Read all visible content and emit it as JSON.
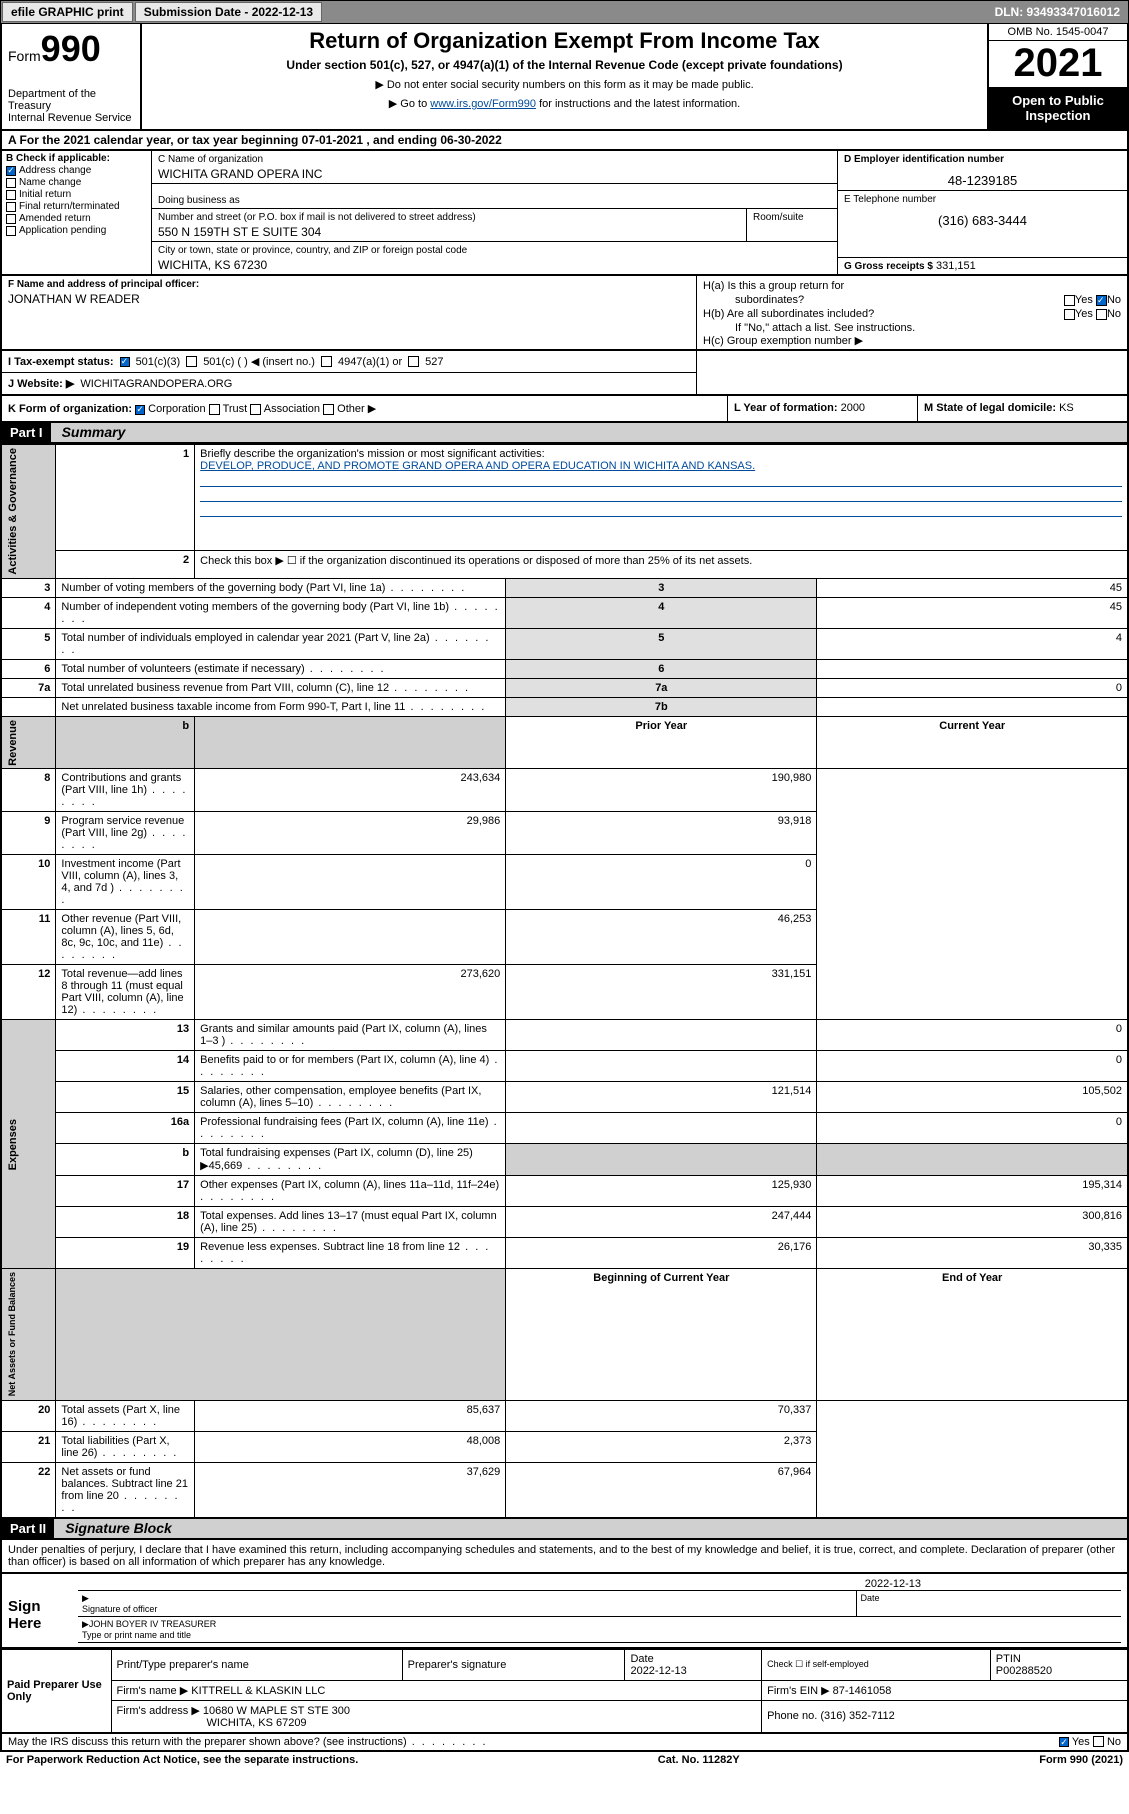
{
  "toolbar": {
    "efile": "efile GRAPHIC print",
    "subdate_label": "Submission Date - 2022-12-13",
    "dln": "DLN: 93493347016012"
  },
  "header": {
    "form_label": "Form",
    "form_num": "990",
    "title": "Return of Organization Exempt From Income Tax",
    "subtitle": "Under section 501(c), 527, or 4947(a)(1) of the Internal Revenue Code (except private foundations)",
    "note1": "▶ Do not enter social security numbers on this form as it may be made public.",
    "note2_pre": "▶ Go to ",
    "note2_link": "www.irs.gov/Form990",
    "note2_post": " for instructions and the latest information.",
    "dept": "Department of the Treasury\nInternal Revenue Service",
    "omb": "OMB No. 1545-0047",
    "year": "2021",
    "open": "Open to Public Inspection"
  },
  "rowA": "A For the 2021 calendar year, or tax year beginning 07-01-2021   , and ending 06-30-2022",
  "sectionB": {
    "label": "B Check if applicable:",
    "items": [
      "Address change",
      "Name change",
      "Initial return",
      "Final return/terminated",
      "Amended return",
      "Application pending"
    ],
    "checked_idx": 0
  },
  "sectionC": {
    "name_label": "C Name of organization",
    "name": "WICHITA GRAND OPERA INC",
    "dba_label": "Doing business as",
    "street_label": "Number and street (or P.O. box if mail is not delivered to street address)",
    "street": "550 N 159TH ST E SUITE 304",
    "room_label": "Room/suite",
    "city_label": "City or town, state or province, country, and ZIP or foreign postal code",
    "city": "WICHITA, KS  67230"
  },
  "sectionD": {
    "ein_label": "D Employer identification number",
    "ein": "48-1239185",
    "tel_label": "E Telephone number",
    "tel": "(316) 683-3444",
    "gross_label": "G Gross receipts $",
    "gross": "331,151"
  },
  "sectionF": {
    "label": "F Name and address of principal officer:",
    "name": "JONATHAN W READER"
  },
  "sectionH": {
    "ha": "H(a)  Is this a group return for",
    "ha2": "subordinates?",
    "hb": "H(b)  Are all subordinates included?",
    "hb_note": "If \"No,\" attach a list. See instructions.",
    "hc": "H(c)  Group exemption number ▶",
    "yes": "Yes",
    "no": "No"
  },
  "sectionI": {
    "label": "I    Tax-exempt status:",
    "opts": [
      "501(c)(3)",
      "501(c) (  ) ◀ (insert no.)",
      "4947(a)(1) or",
      "527"
    ]
  },
  "sectionJ": {
    "label": "J    Website: ▶",
    "val": "WICHITAGRANDOPERA.ORG"
  },
  "sectionK": {
    "label": "K Form of organization:",
    "opts": [
      "Corporation",
      "Trust",
      "Association",
      "Other ▶"
    ]
  },
  "sectionL": {
    "label": "L Year of formation:",
    "val": "2000"
  },
  "sectionM": {
    "label": "M State of legal domicile:",
    "val": "KS"
  },
  "part1": {
    "label": "Part I",
    "title": "Summary"
  },
  "summary": {
    "line1_label": "Briefly describe the organization's mission or most significant activities:",
    "line1_val": "DEVELOP, PRODUCE, AND PROMOTE GRAND OPERA AND OPERA EDUCATION IN WICHITA AND KANSAS.",
    "line2": "Check this box ▶ ☐  if the organization discontinued its operations or disposed of more than 25% of its net assets.",
    "hdr_prior": "Prior Year",
    "hdr_current": "Current Year",
    "hdr_begin": "Beginning of Current Year",
    "hdr_end": "End of Year",
    "side1": "Activities & Governance",
    "side2": "Revenue",
    "side3": "Expenses",
    "side4": "Net Assets or Fund Balances",
    "rows": [
      {
        "n": "3",
        "t": "Number of voting members of the governing body (Part VI, line 1a)",
        "ln": "3",
        "v": "45"
      },
      {
        "n": "4",
        "t": "Number of independent voting members of the governing body (Part VI, line 1b)",
        "ln": "4",
        "v": "45"
      },
      {
        "n": "5",
        "t": "Total number of individuals employed in calendar year 2021 (Part V, line 2a)",
        "ln": "5",
        "v": "4"
      },
      {
        "n": "6",
        "t": "Total number of volunteers (estimate if necessary)",
        "ln": "6",
        "v": ""
      },
      {
        "n": "7a",
        "t": "Total unrelated business revenue from Part VIII, column (C), line 12",
        "ln": "7a",
        "v": "0"
      },
      {
        "n": "",
        "t": "Net unrelated business taxable income from Form 990-T, Part I, line 11",
        "ln": "7b",
        "v": ""
      }
    ],
    "rev": [
      {
        "n": "8",
        "t": "Contributions and grants (Part VIII, line 1h)",
        "p": "243,634",
        "c": "190,980"
      },
      {
        "n": "9",
        "t": "Program service revenue (Part VIII, line 2g)",
        "p": "29,986",
        "c": "93,918"
      },
      {
        "n": "10",
        "t": "Investment income (Part VIII, column (A), lines 3, 4, and 7d )",
        "p": "",
        "c": "0"
      },
      {
        "n": "11",
        "t": "Other revenue (Part VIII, column (A), lines 5, 6d, 8c, 9c, 10c, and 11e)",
        "p": "",
        "c": "46,253"
      },
      {
        "n": "12",
        "t": "Total revenue—add lines 8 through 11 (must equal Part VIII, column (A), line 12)",
        "p": "273,620",
        "c": "331,151"
      }
    ],
    "exp": [
      {
        "n": "13",
        "t": "Grants and similar amounts paid (Part IX, column (A), lines 1–3 )",
        "p": "",
        "c": "0"
      },
      {
        "n": "14",
        "t": "Benefits paid to or for members (Part IX, column (A), line 4)",
        "p": "",
        "c": "0"
      },
      {
        "n": "15",
        "t": "Salaries, other compensation, employee benefits (Part IX, column (A), lines 5–10)",
        "p": "121,514",
        "c": "105,502"
      },
      {
        "n": "16a",
        "t": "Professional fundraising fees (Part IX, column (A), line 11e)",
        "p": "",
        "c": "0"
      },
      {
        "n": "b",
        "t": "Total fundraising expenses (Part IX, column (D), line 25) ▶45,669",
        "p": "shaded",
        "c": "shaded"
      },
      {
        "n": "17",
        "t": "Other expenses (Part IX, column (A), lines 11a–11d, 11f–24e)",
        "p": "125,930",
        "c": "195,314"
      },
      {
        "n": "18",
        "t": "Total expenses. Add lines 13–17 (must equal Part IX, column (A), line 25)",
        "p": "247,444",
        "c": "300,816"
      },
      {
        "n": "19",
        "t": "Revenue less expenses. Subtract line 18 from line 12",
        "p": "26,176",
        "c": "30,335"
      }
    ],
    "net": [
      {
        "n": "20",
        "t": "Total assets (Part X, line 16)",
        "p": "85,637",
        "c": "70,337"
      },
      {
        "n": "21",
        "t": "Total liabilities (Part X, line 26)",
        "p": "48,008",
        "c": "2,373"
      },
      {
        "n": "22",
        "t": "Net assets or fund balances. Subtract line 21 from line 20",
        "p": "37,629",
        "c": "67,964"
      }
    ]
  },
  "part2": {
    "label": "Part II",
    "title": "Signature Block"
  },
  "sig": {
    "perjury": "Under penalties of perjury, I declare that I have examined this return, including accompanying schedules and statements, and to the best of my knowledge and belief, it is true, correct, and complete. Declaration of preparer (other than officer) is based on all information of which preparer has any knowledge.",
    "sign_here": "Sign Here",
    "sig_officer": "Signature of officer",
    "date_label": "Date",
    "date": "2022-12-13",
    "name_title": "JOHN BOYER IV TREASURER",
    "name_label": "Type or print name and title"
  },
  "paid": {
    "label": "Paid Preparer Use Only",
    "h1": "Print/Type preparer's name",
    "h2": "Preparer's signature",
    "h3": "Date",
    "h3v": "2022-12-13",
    "h4": "Check ☐ if self-employed",
    "h5": "PTIN",
    "h5v": "P00288520",
    "firm_name_l": "Firm's name    ▶",
    "firm_name": "KITTRELL & KLASKIN LLC",
    "firm_ein_l": "Firm's EIN ▶",
    "firm_ein": "87-1461058",
    "firm_addr_l": "Firm's address ▶",
    "firm_addr": "10680 W MAPLE ST STE 300",
    "firm_city": "WICHITA, KS  67209",
    "phone_l": "Phone no.",
    "phone": "(316) 352-7112"
  },
  "footer": {
    "discuss": "May the IRS discuss this return with the preparer shown above? (see instructions)",
    "yes": "Yes",
    "no": "No",
    "paperwork": "For Paperwork Reduction Act Notice, see the separate instructions.",
    "cat": "Cat. No. 11282Y",
    "form": "Form 990 (2021)"
  }
}
